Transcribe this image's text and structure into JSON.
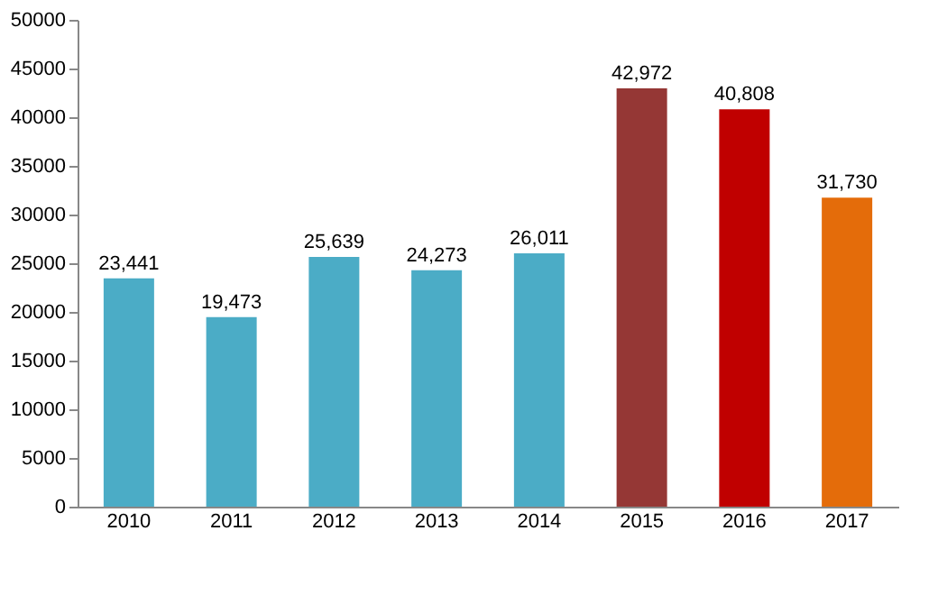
{
  "chart_data": {
    "type": "bar",
    "categories": [
      "2010",
      "2011",
      "2012",
      "2013",
      "2014",
      "2015",
      "2016",
      "2017"
    ],
    "values": [
      23441,
      19473,
      25639,
      24273,
      26011,
      42972,
      40808,
      31730
    ],
    "colors": [
      "#4bacc6",
      "#4bacc6",
      "#4bacc6",
      "#4bacc6",
      "#4bacc6",
      "#953735",
      "#c00000",
      "#e46c0a"
    ],
    "value_labels": [
      "23,441",
      "19,473",
      "25,639",
      "24,273",
      "26,011",
      "42,972",
      "40,808",
      "31,730"
    ],
    "ylim": [
      0,
      50000
    ],
    "yticks": [
      0,
      5000,
      10000,
      15000,
      20000,
      25000,
      30000,
      35000,
      40000,
      45000,
      50000
    ],
    "grid": false
  }
}
